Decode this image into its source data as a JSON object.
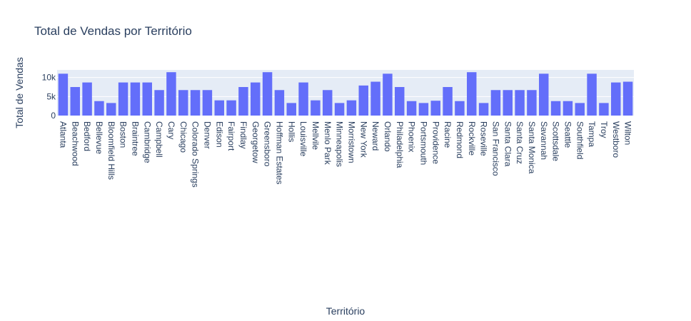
{
  "chart_data": {
    "type": "bar",
    "title": "Total de Vendas por Território",
    "xlabel": "Território",
    "ylabel": "Total de Vendas",
    "ylim": [
      0,
      12000
    ],
    "yticks": [
      0,
      5000,
      10000
    ],
    "ytick_labels": [
      "0",
      "5k",
      "10k"
    ],
    "grid": true,
    "color": "#636efa",
    "plot_bg": "#e5ecf6",
    "categories": [
      "Atlanta",
      "Beachwood",
      "Bedford",
      "Bellevue",
      "Bloomfield Hills",
      "Boston",
      "Braintree",
      "Cambridge",
      "Campbell",
      "Cary",
      "Chicago",
      "Colorado Springs",
      "Denver",
      "Edison",
      "Fairport",
      "Findlay",
      "Georgetow",
      "Greensboro",
      "Hoffman Estates",
      "Hollis",
      "Louisville",
      "Mellvile",
      "Menlo Park",
      "Minneapolis",
      "Morristown",
      "New York",
      "Neward",
      "Orlando",
      "Philadelphia",
      "Phoenix",
      "Portsmouth",
      "Providence",
      "Racine",
      "Redmond",
      "Rockville",
      "Roseville",
      "San Francisco",
      "Santa Clara",
      "Santa Cruz",
      "Santa Monica",
      "Savannah",
      "Scottsdale",
      "Seattle",
      "Southfield",
      "Tampa",
      "Troy",
      "Westboro",
      "Wilton"
    ],
    "values": [
      11000,
      7500,
      8700,
      3800,
      3300,
      8700,
      8700,
      8700,
      6700,
      11400,
      6700,
      6700,
      6700,
      4000,
      4000,
      7500,
      8700,
      11400,
      6700,
      3300,
      8700,
      4000,
      6700,
      3300,
      4000,
      7900,
      8900,
      11000,
      7500,
      3800,
      3300,
      3900,
      7500,
      3800,
      11400,
      3300,
      6700,
      6700,
      6700,
      6700,
      11000,
      3800,
      3800,
      3300,
      11000,
      3300,
      8700,
      8900
    ]
  }
}
